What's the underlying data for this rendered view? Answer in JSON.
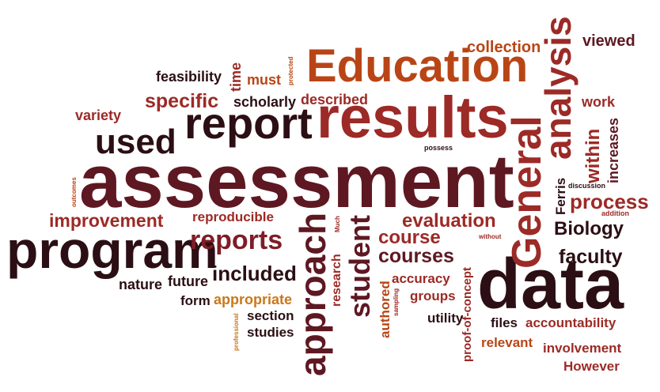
{
  "colors": {
    "dark": "#2b0f14",
    "wine": "#5e1822",
    "maroon": "#7f1d26",
    "red": "#9c2a26",
    "rust": "#b94516",
    "orange": "#c8781c"
  },
  "words": [
    {
      "text": "assessment",
      "color": "wine"
    },
    {
      "text": "results",
      "color": "red"
    },
    {
      "text": "data",
      "color": "dark"
    },
    {
      "text": "program",
      "color": "dark"
    },
    {
      "text": "report",
      "color": "dark"
    },
    {
      "text": "Education",
      "color": "rust"
    },
    {
      "text": "analysis",
      "color": "red"
    },
    {
      "text": "General",
      "color": "red"
    },
    {
      "text": "approach",
      "color": "wine"
    },
    {
      "text": "used",
      "color": "dark"
    },
    {
      "text": "student",
      "color": "wine"
    },
    {
      "text": "reports",
      "color": "maroon"
    },
    {
      "text": "improvement",
      "color": "red"
    },
    {
      "text": "evaluation",
      "color": "red"
    },
    {
      "text": "specific",
      "color": "red"
    },
    {
      "text": "courses",
      "color": "wine"
    },
    {
      "text": "course",
      "color": "red"
    },
    {
      "text": "included",
      "color": "dark"
    },
    {
      "text": "process",
      "color": "red"
    },
    {
      "text": "Biology",
      "color": "dark"
    },
    {
      "text": "faculty",
      "color": "dark"
    },
    {
      "text": "within",
      "color": "red"
    },
    {
      "text": "collection",
      "color": "rust"
    },
    {
      "text": "viewed",
      "color": "wine"
    },
    {
      "text": "feasibility",
      "color": "dark"
    },
    {
      "text": "must",
      "color": "rust"
    },
    {
      "text": "time",
      "color": "red"
    },
    {
      "text": "scholarly",
      "color": "dark"
    },
    {
      "text": "described",
      "color": "red"
    },
    {
      "text": "variety",
      "color": "red"
    },
    {
      "text": "work",
      "color": "red"
    },
    {
      "text": "increases",
      "color": "wine"
    },
    {
      "text": "Ferris",
      "color": "dark"
    },
    {
      "text": "reproducible",
      "color": "red"
    },
    {
      "text": "nature",
      "color": "dark"
    },
    {
      "text": "future",
      "color": "dark"
    },
    {
      "text": "form",
      "color": "dark"
    },
    {
      "text": "appropriate",
      "color": "orange"
    },
    {
      "text": "section",
      "color": "dark"
    },
    {
      "text": "studies",
      "color": "dark"
    },
    {
      "text": "research",
      "color": "red"
    },
    {
      "text": "authored",
      "color": "rust"
    },
    {
      "text": "accuracy",
      "color": "red"
    },
    {
      "text": "groups",
      "color": "red"
    },
    {
      "text": "utility",
      "color": "dark"
    },
    {
      "text": "proof-of-concept",
      "color": "red"
    },
    {
      "text": "files",
      "color": "dark"
    },
    {
      "text": "accountability",
      "color": "red"
    },
    {
      "text": "relevant",
      "color": "rust"
    },
    {
      "text": "involvement",
      "color": "red"
    },
    {
      "text": "However",
      "color": "red"
    },
    {
      "text": "possess",
      "color": "dark"
    },
    {
      "text": "protected",
      "color": "rust"
    },
    {
      "text": "outcomes",
      "color": "rust"
    },
    {
      "text": "discussion",
      "color": "dark"
    },
    {
      "text": "addition",
      "color": "red"
    },
    {
      "text": "Much",
      "color": "red"
    },
    {
      "text": "without",
      "color": "red"
    },
    {
      "text": "professional",
      "color": "orange"
    },
    {
      "text": "sampling",
      "color": "red"
    }
  ]
}
